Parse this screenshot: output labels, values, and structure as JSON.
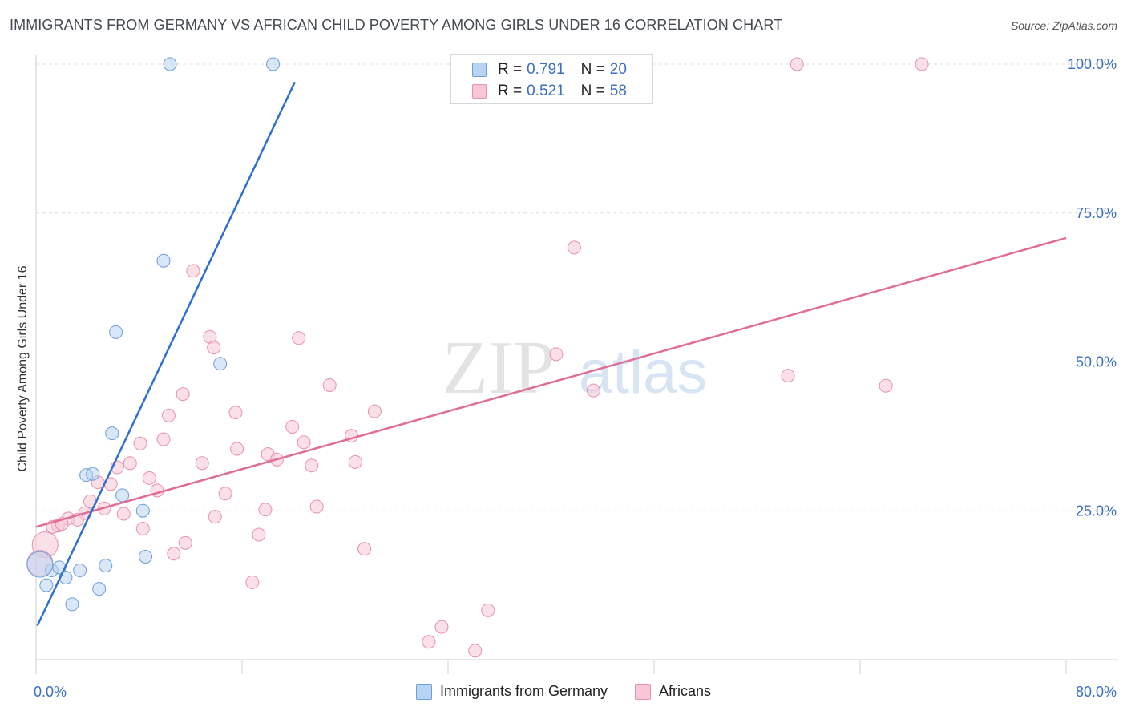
{
  "header": {
    "title": "IMMIGRANTS FROM GERMANY VS AFRICAN CHILD POVERTY AMONG GIRLS UNDER 16 CORRELATION CHART",
    "source": "Source: ZipAtlas.com"
  },
  "watermark": {
    "zip": "ZIP",
    "atlas": "atlas"
  },
  "legend_top": {
    "rows": [
      {
        "r_label": "R =",
        "r_value": "0.791",
        "n_label": "N =",
        "n_value": "20"
      },
      {
        "r_label": "R =",
        "r_value": "0.521",
        "n_label": "N =",
        "n_value": "58"
      }
    ]
  },
  "legend_bottom": {
    "germany": "Immigrants from Germany",
    "africans": "Africans"
  },
  "colors": {
    "germany_fill": "#b9d3f3",
    "germany_stroke": "#6a9fdc",
    "germany_line": "#2f6fd0",
    "africans_fill": "#f8c6d6",
    "africans_stroke": "#e990ac",
    "africans_line": "#e06c97",
    "tick_text": "#3a6fc4"
  },
  "chart_data": {
    "type": "scatter",
    "title": "IMMIGRANTS FROM GERMANY VS AFRICAN CHILD POVERTY AMONG GIRLS UNDER 16 CORRELATION CHART",
    "xlabel": "",
    "ylabel": "Child Poverty Among Girls Under 16",
    "xlim": [
      0,
      80
    ],
    "ylim": [
      0,
      100
    ],
    "x_tick_labels": [
      "0.0%",
      "80.0%"
    ],
    "y_tick_labels": [
      {
        "value": 25,
        "label": "25.0%"
      },
      {
        "value": 50,
        "label": "50.0%"
      },
      {
        "value": 75,
        "label": "75.0%"
      },
      {
        "value": 100,
        "label": "100.0%"
      }
    ],
    "grid": "horizontal dashed",
    "legend_position": "top-center",
    "series": [
      {
        "name": "Immigrants from Germany",
        "r": 0.791,
        "n": 20,
        "trend": {
          "x": [
            0.1,
            20.1
          ],
          "y": [
            5.7,
            97.0
          ]
        },
        "points": [
          {
            "x": 10.4,
            "y": 100
          },
          {
            "x": 18.4,
            "y": 100
          },
          {
            "x": 9.9,
            "y": 67.0
          },
          {
            "x": 6.2,
            "y": 55.0
          },
          {
            "x": 14.3,
            "y": 49.7
          },
          {
            "x": 5.9,
            "y": 38.0
          },
          {
            "x": 3.9,
            "y": 31.0
          },
          {
            "x": 4.4,
            "y": 31.2
          },
          {
            "x": 6.7,
            "y": 27.6
          },
          {
            "x": 8.3,
            "y": 25.0
          },
          {
            "x": 8.5,
            "y": 17.3
          },
          {
            "x": 5.4,
            "y": 15.8
          },
          {
            "x": 1.2,
            "y": 15.0
          },
          {
            "x": 1.8,
            "y": 15.5
          },
          {
            "x": 3.4,
            "y": 15.0
          },
          {
            "x": 2.3,
            "y": 13.8
          },
          {
            "x": 0.8,
            "y": 12.5
          },
          {
            "x": 4.9,
            "y": 11.9
          },
          {
            "x": 2.8,
            "y": 9.3
          },
          {
            "x": 0.3,
            "y": 16.0,
            "size": "large"
          }
        ]
      },
      {
        "name": "Africans",
        "r": 0.521,
        "n": 58,
        "trend": {
          "x": [
            0,
            80
          ],
          "y": [
            22.3,
            70.8
          ]
        },
        "points": [
          {
            "x": 59.1,
            "y": 100
          },
          {
            "x": 68.8,
            "y": 100
          },
          {
            "x": 41.8,
            "y": 69.2
          },
          {
            "x": 12.2,
            "y": 65.3
          },
          {
            "x": 13.5,
            "y": 54.2
          },
          {
            "x": 13.8,
            "y": 52.4
          },
          {
            "x": 20.4,
            "y": 54.0
          },
          {
            "x": 40.4,
            "y": 51.3
          },
          {
            "x": 58.4,
            "y": 47.7
          },
          {
            "x": 66.0,
            "y": 46.0
          },
          {
            "x": 22.8,
            "y": 46.1
          },
          {
            "x": 43.3,
            "y": 45.2
          },
          {
            "x": 11.4,
            "y": 44.6
          },
          {
            "x": 26.3,
            "y": 41.7
          },
          {
            "x": 10.3,
            "y": 41.0
          },
          {
            "x": 15.5,
            "y": 41.5
          },
          {
            "x": 19.9,
            "y": 39.1
          },
          {
            "x": 24.5,
            "y": 37.6
          },
          {
            "x": 9.9,
            "y": 37.0
          },
          {
            "x": 8.1,
            "y": 36.3
          },
          {
            "x": 20.8,
            "y": 36.5
          },
          {
            "x": 15.6,
            "y": 35.4
          },
          {
            "x": 18.0,
            "y": 34.5
          },
          {
            "x": 18.7,
            "y": 33.6
          },
          {
            "x": 12.9,
            "y": 33.0
          },
          {
            "x": 7.3,
            "y": 33.0
          },
          {
            "x": 24.8,
            "y": 33.2
          },
          {
            "x": 21.4,
            "y": 32.6
          },
          {
            "x": 6.3,
            "y": 32.3
          },
          {
            "x": 8.8,
            "y": 30.5
          },
          {
            "x": 4.8,
            "y": 29.8
          },
          {
            "x": 5.8,
            "y": 29.5
          },
          {
            "x": 9.4,
            "y": 28.4
          },
          {
            "x": 14.7,
            "y": 27.9
          },
          {
            "x": 4.2,
            "y": 26.6
          },
          {
            "x": 21.8,
            "y": 25.7
          },
          {
            "x": 5.3,
            "y": 25.4
          },
          {
            "x": 17.8,
            "y": 25.2
          },
          {
            "x": 6.8,
            "y": 24.5
          },
          {
            "x": 3.8,
            "y": 24.6
          },
          {
            "x": 2.5,
            "y": 23.7
          },
          {
            "x": 13.9,
            "y": 24.0
          },
          {
            "x": 3.2,
            "y": 23.5
          },
          {
            "x": 1.7,
            "y": 22.5
          },
          {
            "x": 1.3,
            "y": 22.3
          },
          {
            "x": 8.3,
            "y": 22.0
          },
          {
            "x": 17.3,
            "y": 21.0
          },
          {
            "x": 11.6,
            "y": 19.6
          },
          {
            "x": 25.5,
            "y": 18.6
          },
          {
            "x": 10.7,
            "y": 17.8
          },
          {
            "x": 0.7,
            "y": 19.3,
            "size": "large"
          },
          {
            "x": 16.8,
            "y": 13.0
          },
          {
            "x": 35.1,
            "y": 8.3
          },
          {
            "x": 31.5,
            "y": 5.5
          },
          {
            "x": 30.5,
            "y": 3.0
          },
          {
            "x": 34.1,
            "y": 1.5
          },
          {
            "x": 0.3,
            "y": 16.2,
            "size": "large"
          },
          {
            "x": 2.0,
            "y": 22.8
          }
        ]
      }
    ]
  }
}
